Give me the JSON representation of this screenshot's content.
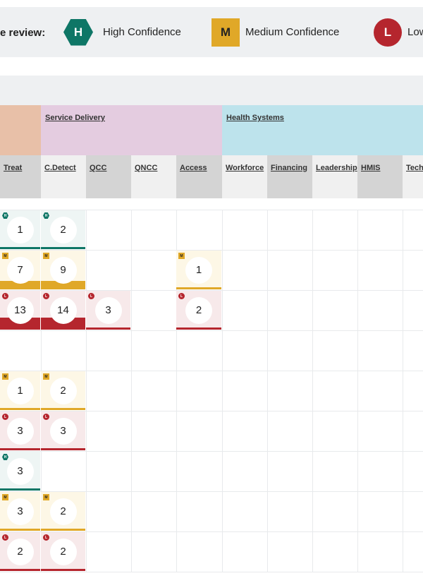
{
  "legend": {
    "title": "e review:",
    "items": [
      {
        "code": "H",
        "label": "High Confidence"
      },
      {
        "code": "M",
        "label": "Medium Confidence"
      },
      {
        "code": "L",
        "label": "Low"
      }
    ]
  },
  "categories": [
    {
      "label": "",
      "color": "#e8c0a8"
    },
    {
      "label": "Service Delivery",
      "color": "#e4cce0"
    },
    {
      "label": "Health Systems",
      "color": "#bde3ec"
    }
  ],
  "columns": [
    {
      "label": "Treat",
      "shade": "#d4d4d4"
    },
    {
      "label": "C.Detect",
      "shade": "#f0f0f0"
    },
    {
      "label": "QCC",
      "shade": "#d4d4d4"
    },
    {
      "label": "QNCC",
      "shade": "#f0f0f0"
    },
    {
      "label": "Access",
      "shade": "#d4d4d4"
    },
    {
      "label": "Workforce",
      "shade": "#f0f0f0"
    },
    {
      "label": "Financing",
      "shade": "#d4d4d4"
    },
    {
      "label": "Leadership",
      "shade": "#f0f0f0"
    },
    {
      "label": "HMIS",
      "shade": "#d4d4d4"
    },
    {
      "label": "Tech",
      "shade": "#f0f0f0"
    }
  ],
  "cells": [
    {
      "row": 0,
      "col": 0,
      "level": "H",
      "value": "1"
    },
    {
      "row": 0,
      "col": 1,
      "level": "H",
      "value": "2"
    },
    {
      "row": 1,
      "col": 0,
      "level": "M",
      "value": "7"
    },
    {
      "row": 1,
      "col": 1,
      "level": "M",
      "value": "9"
    },
    {
      "row": 1,
      "col": 4,
      "level": "M",
      "value": "1",
      "small": true
    },
    {
      "row": 2,
      "col": 0,
      "level": "L",
      "value": "13"
    },
    {
      "row": 2,
      "col": 1,
      "level": "L",
      "value": "14"
    },
    {
      "row": 2,
      "col": 2,
      "level": "L",
      "value": "3",
      "small": true
    },
    {
      "row": 2,
      "col": 4,
      "level": "L",
      "value": "2",
      "small": true
    },
    {
      "row": 4,
      "col": 0,
      "level": "M",
      "value": "1",
      "small": true
    },
    {
      "row": 4,
      "col": 1,
      "level": "M",
      "value": "2",
      "small": true
    },
    {
      "row": 5,
      "col": 0,
      "level": "L",
      "value": "3",
      "small": true
    },
    {
      "row": 5,
      "col": 1,
      "level": "L",
      "value": "3",
      "small": true
    },
    {
      "row": 6,
      "col": 0,
      "level": "H",
      "value": "3"
    },
    {
      "row": 7,
      "col": 0,
      "level": "M",
      "value": "3",
      "small": true
    },
    {
      "row": 7,
      "col": 1,
      "level": "M",
      "value": "2",
      "small": true
    },
    {
      "row": 8,
      "col": 0,
      "level": "L",
      "value": "2",
      "small": true
    },
    {
      "row": 8,
      "col": 1,
      "level": "L",
      "value": "2",
      "small": true
    }
  ],
  "colors": {
    "high": "#0e7666",
    "medium": "#e0a828",
    "low": "#b5262e"
  }
}
